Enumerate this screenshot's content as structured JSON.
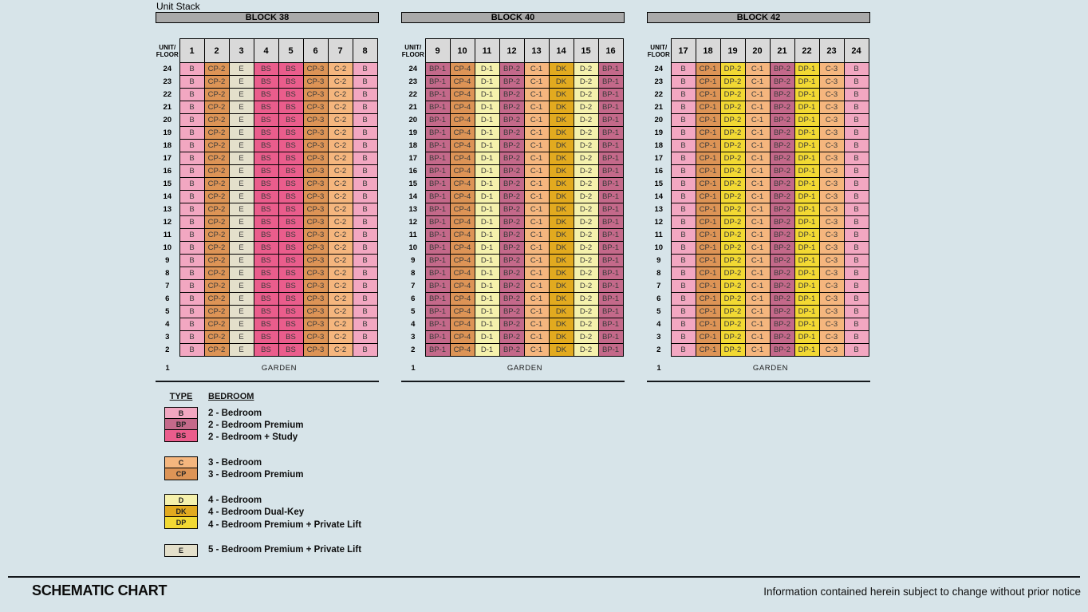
{
  "title": "Unit Stack",
  "colors": {
    "background": "#d7e4e9",
    "block_bar": "#a9a9a9",
    "header_cell": "#d9d9d9",
    "border": "#000000",
    "cell_text": "#3a3a3a"
  },
  "type_colors": {
    "B": "#f2a7c1",
    "BP": "#c4698a",
    "BS": "#ea5d8c",
    "C": "#f5b67e",
    "CP": "#dd9456",
    "D": "#f5f1ac",
    "DK": "#e2aa1f",
    "DP": "#f2d933",
    "E": "#e4e0cb"
  },
  "unit_floor_header": [
    "UNIT/",
    "FLOOR"
  ],
  "floors": [
    24,
    23,
    22,
    21,
    20,
    19,
    18,
    17,
    16,
    15,
    14,
    13,
    12,
    11,
    10,
    9,
    8,
    7,
    6,
    5,
    4,
    3,
    2
  ],
  "garden": {
    "floor": "1",
    "label": "GARDEN"
  },
  "blocks": [
    {
      "name": "BLOCK 38",
      "units": [
        "1",
        "2",
        "3",
        "4",
        "5",
        "6",
        "7",
        "8"
      ],
      "row_types": [
        "B",
        "CP-2",
        "E",
        "BS",
        "BS",
        "CP-3",
        "C-2",
        "B"
      ]
    },
    {
      "name": "BLOCK 40",
      "units": [
        "9",
        "10",
        "11",
        "12",
        "13",
        "14",
        "15",
        "16"
      ],
      "row_types": [
        "BP-1",
        "CP-4",
        "D-1",
        "BP-2",
        "C-1",
        "DK",
        "D-2",
        "BP-1"
      ]
    },
    {
      "name": "BLOCK 42",
      "units": [
        "17",
        "18",
        "19",
        "20",
        "21",
        "22",
        "23",
        "24"
      ],
      "row_types": [
        "B",
        "CP-1",
        "DP-2",
        "C-1",
        "BP-2",
        "DP-1",
        "C-3",
        "B"
      ]
    }
  ],
  "legend": {
    "type_header": "TYPE",
    "bedroom_header": "BEDROOM",
    "groups": [
      {
        "items": [
          {
            "code": "B",
            "label": "2 - Bedroom"
          },
          {
            "code": "BP",
            "label": "2 - Bedroom Premium"
          },
          {
            "code": "BS",
            "label": "2 - Bedroom + Study"
          }
        ]
      },
      {
        "items": [
          {
            "code": "C",
            "label": "3 - Bedroom"
          },
          {
            "code": "CP",
            "label": "3 - Bedroom Premium"
          }
        ]
      },
      {
        "items": [
          {
            "code": "D",
            "label": "4 - Bedroom"
          },
          {
            "code": "DK",
            "label": "4 - Bedroom Dual-Key"
          },
          {
            "code": "DP",
            "label": "4 - Bedroom Premium + Private Lift"
          }
        ]
      },
      {
        "items": [
          {
            "code": "E",
            "label": "5 - Bedroom Premium + Private Lift"
          }
        ]
      }
    ]
  },
  "footer": {
    "title": "SCHEMATIC CHART",
    "disclaimer": "Information contained herein subject to change without prior notice"
  }
}
